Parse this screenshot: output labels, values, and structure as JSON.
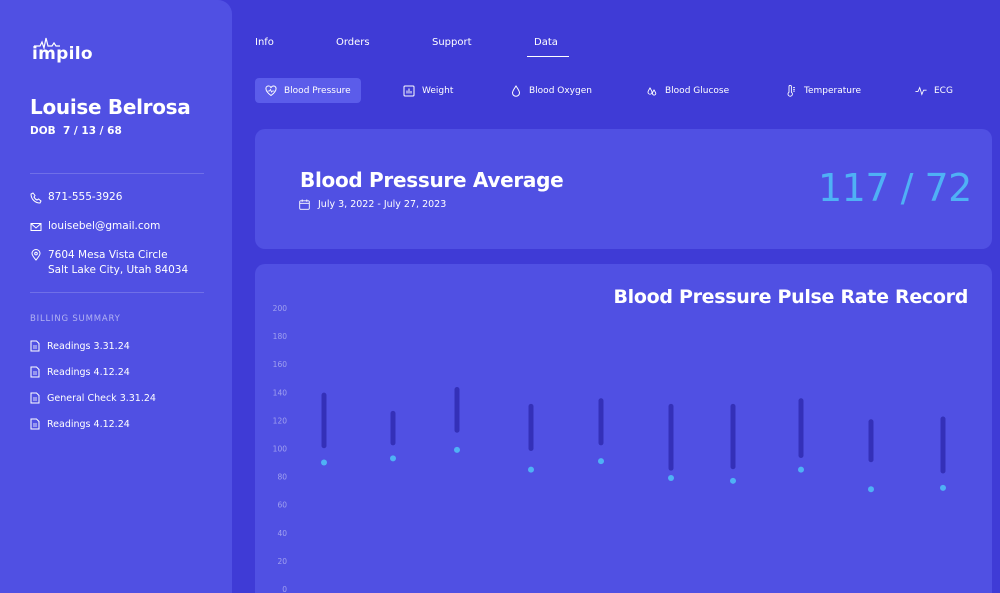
{
  "app": {
    "logo_text": "impilo"
  },
  "patient": {
    "name": "Louise Belrosa",
    "dob": "DOB  7 / 13 / 68",
    "phone": "871-555-3926",
    "email": "louisebel@gmail.com",
    "address_line1": "7604 Mesa Vista Circle",
    "address_line2": "Salt Lake City, Utah 84034"
  },
  "billing": {
    "title": "BILLING SUMMARY",
    "items": [
      {
        "label": "Readings 3.31.24"
      },
      {
        "label": "Readings 4.12.24"
      },
      {
        "label": "General Check 3.31.24"
      },
      {
        "label": "Readings 4.12.24"
      }
    ]
  },
  "nav": {
    "tabs": [
      {
        "label": "Info"
      },
      {
        "label": "Orders"
      },
      {
        "label": "Support"
      },
      {
        "label": "Data"
      }
    ],
    "active": "Data"
  },
  "subtabs": [
    {
      "label": "Blood Pressure",
      "icon": "heart-pulse-icon"
    },
    {
      "label": "Weight",
      "icon": "bar-chart-icon"
    },
    {
      "label": "Blood Oxygen",
      "icon": "droplet-icon"
    },
    {
      "label": "Blood Glucose",
      "icon": "droplets-icon"
    },
    {
      "label": "Temperature",
      "icon": "thermometer-icon"
    },
    {
      "label": "ECG",
      "icon": "activity-icon"
    }
  ],
  "average": {
    "title": "Blood Pressure Average",
    "date_range": "July 3, 2022 - July 27, 2023",
    "value": "117 / 72"
  },
  "colors": {
    "background": "#3f3bd6",
    "card": "#5050e3",
    "accent": "#4fb1f5",
    "bar": "#3430b8"
  },
  "chart_data": {
    "type": "bar",
    "title": "Blood Pressure Pulse Rate Record",
    "ylim": [
      0,
      200
    ],
    "yticks": [
      200,
      180,
      160,
      140,
      120,
      100,
      80,
      60,
      40,
      20,
      0
    ],
    "grid": false,
    "series": [
      {
        "values": [
          [
            138,
            102
          ],
          [
            125,
            104
          ],
          [
            142,
            113
          ],
          [
            130,
            100
          ],
          [
            134,
            104
          ],
          [
            130,
            86
          ],
          [
            130,
            87
          ],
          [
            134,
            95
          ],
          [
            119,
            92
          ],
          [
            121,
            84
          ]
        ]
      },
      {
        "values": [
          90,
          93,
          99,
          85,
          91,
          79,
          77,
          85,
          71,
          72
        ]
      }
    ]
  }
}
